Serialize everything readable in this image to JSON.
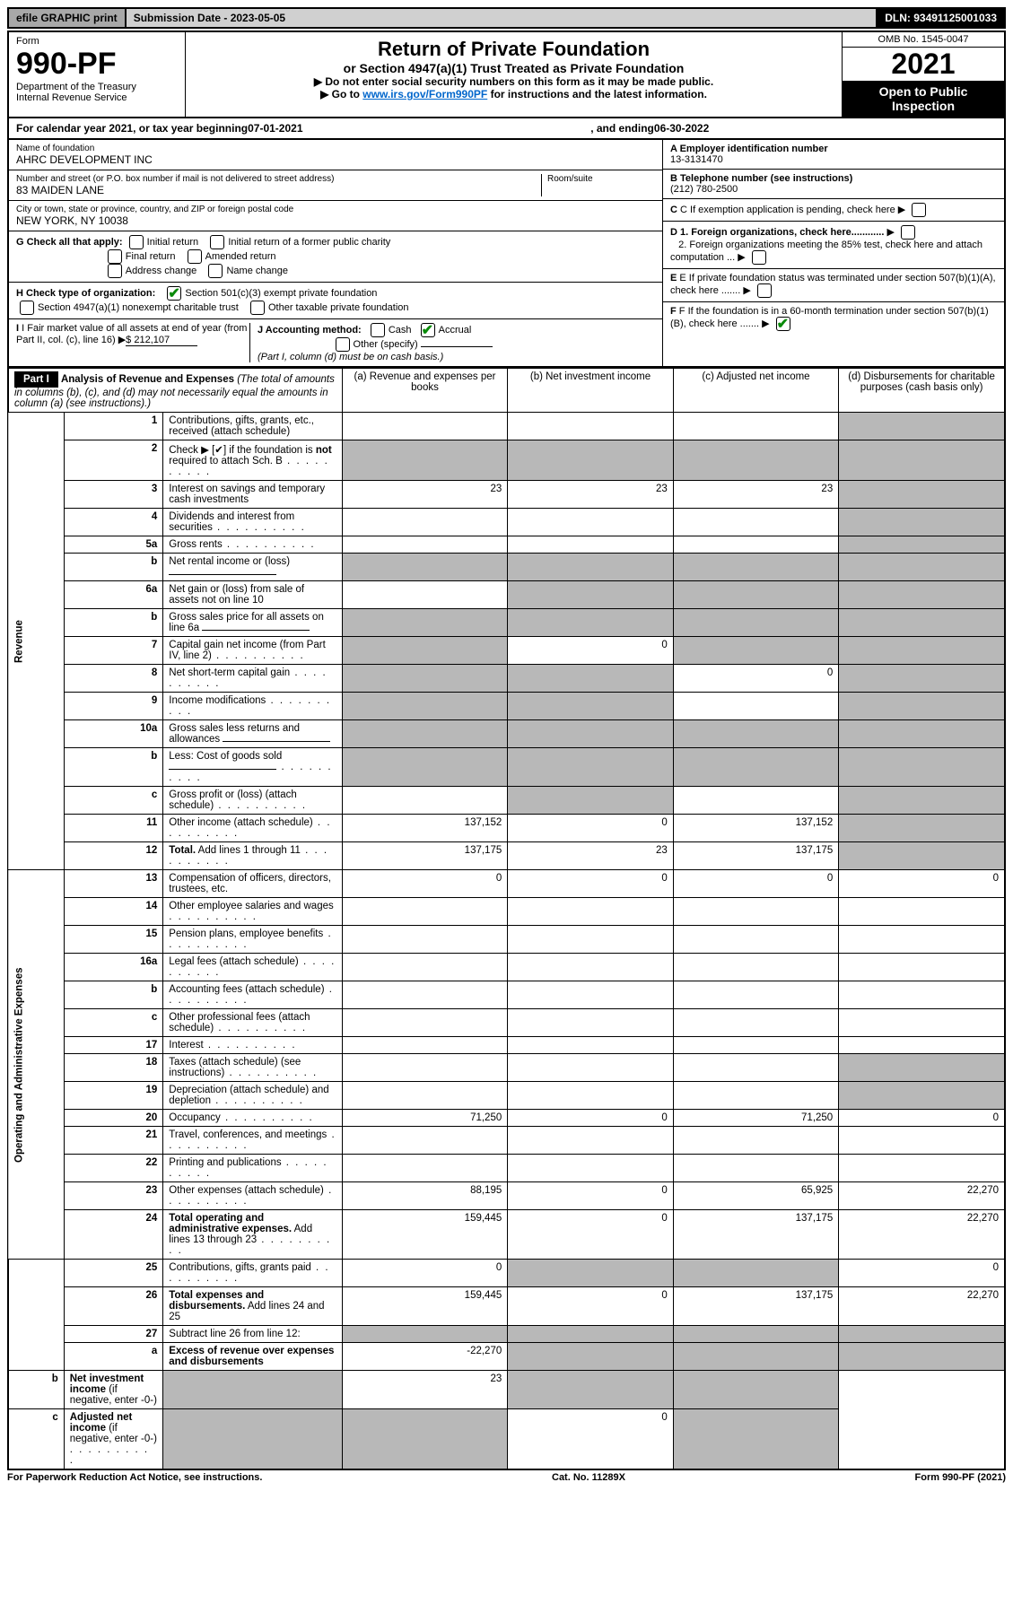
{
  "top": {
    "efile": "efile GRAPHIC print",
    "submission": "Submission Date - 2023-05-05",
    "dln": "DLN: 93491125001033"
  },
  "header": {
    "form_label": "Form",
    "form_num": "990-PF",
    "dept": "Department of the Treasury",
    "irs": "Internal Revenue Service",
    "title": "Return of Private Foundation",
    "subtitle": "or Section 4947(a)(1) Trust Treated as Private Foundation",
    "instr1": "▶ Do not enter social security numbers on this form as it may be made public.",
    "instr2_pre": "▶ Go to ",
    "instr2_link": "www.irs.gov/Form990PF",
    "instr2_post": " for instructions and the latest information.",
    "omb": "OMB No. 1545-0047",
    "year": "2021",
    "open": "Open to Public Inspection"
  },
  "cal": {
    "text1": "For calendar year 2021, or tax year beginning ",
    "begin": "07-01-2021",
    "text2": ", and ending ",
    "end": "06-30-2022"
  },
  "info": {
    "name_label": "Name of foundation",
    "name": "AHRC DEVELOPMENT INC",
    "addr_label": "Number and street (or P.O. box number if mail is not delivered to street address)",
    "addr": "83 MAIDEN LANE",
    "room_label": "Room/suite",
    "city_label": "City or town, state or province, country, and ZIP or foreign postal code",
    "city": "NEW YORK, NY  10038",
    "ein_label": "A Employer identification number",
    "ein": "13-3131470",
    "phone_label": "B Telephone number (see instructions)",
    "phone": "(212) 780-2500",
    "c_label": "C If exemption application is pending, check here",
    "g_label": "G Check all that apply:",
    "g_opts": [
      "Initial return",
      "Initial return of a former public charity",
      "Final return",
      "Amended return",
      "Address change",
      "Name change"
    ],
    "d1": "D 1. Foreign organizations, check here............",
    "d2": "2. Foreign organizations meeting the 85% test, check here and attach computation ...",
    "h_label": "H Check type of organization:",
    "h1": "Section 501(c)(3) exempt private foundation",
    "h2": "Section 4947(a)(1) nonexempt charitable trust",
    "h3": "Other taxable private foundation",
    "e_label": "E If private foundation status was terminated under section 507(b)(1)(A), check here .......",
    "i_label": "I Fair market value of all assets at end of year (from Part II, col. (c), line 16)",
    "i_val": "$  212,107",
    "j_label": "J Accounting method:",
    "j_cash": "Cash",
    "j_accrual": "Accrual",
    "j_other": "Other (specify)",
    "j_note": "(Part I, column (d) must be on cash basis.)",
    "f_label": "F If the foundation is in a 60-month termination under section 507(b)(1)(B), check here ......."
  },
  "part1": {
    "label": "Part I",
    "title": "Analysis of Revenue and Expenses",
    "note": "(The total of amounts in columns (b), (c), and (d) may not necessarily equal the amounts in column (a) (see instructions).)",
    "cols": {
      "a": "(a) Revenue and expenses per books",
      "b": "(b) Net investment income",
      "c": "(c) Adjusted net income",
      "d": "(d) Disbursements for charitable purposes (cash basis only)"
    }
  },
  "sections": {
    "revenue": "Revenue",
    "expenses": "Operating and Administrative Expenses"
  },
  "rows": [
    {
      "n": "1",
      "d": "Contributions, gifts, grants, etc., received (attach schedule)",
      "a": "",
      "b": "",
      "c": "",
      "dS": true
    },
    {
      "n": "2",
      "d": "Check ▶ [✔] if the foundation is <b>not</b> required to attach Sch. B",
      "dots": true,
      "aS": true,
      "bS": true,
      "cS": true,
      "dS": true
    },
    {
      "n": "3",
      "d": "Interest on savings and temporary cash investments",
      "a": "23",
      "b": "23",
      "c": "23",
      "dS": true
    },
    {
      "n": "4",
      "d": "Dividends and interest from securities",
      "dots": true,
      "a": "",
      "b": "",
      "c": "",
      "dS": true
    },
    {
      "n": "5a",
      "d": "Gross rents",
      "dots": true,
      "a": "",
      "b": "",
      "c": "",
      "dS": true
    },
    {
      "n": "b",
      "d": "Net rental income or (loss)",
      "underline": true,
      "aS": true,
      "bS": true,
      "cS": true,
      "dS": true
    },
    {
      "n": "6a",
      "d": "Net gain or (loss) from sale of assets not on line 10",
      "a": "",
      "bS": true,
      "cS": true,
      "dS": true
    },
    {
      "n": "b",
      "d": "Gross sales price for all assets on line 6a",
      "underline": true,
      "aS": true,
      "bS": true,
      "cS": true,
      "dS": true
    },
    {
      "n": "7",
      "d": "Capital gain net income (from Part IV, line 2)",
      "dots": true,
      "aS": true,
      "b": "0",
      "cS": true,
      "dS": true
    },
    {
      "n": "8",
      "d": "Net short-term capital gain",
      "dots": true,
      "aS": true,
      "bS": true,
      "c": "0",
      "dS": true
    },
    {
      "n": "9",
      "d": "Income modifications",
      "dots": true,
      "aS": true,
      "bS": true,
      "c": "",
      "dS": true
    },
    {
      "n": "10a",
      "d": "Gross sales less returns and allowances",
      "underline": true,
      "aS": true,
      "bS": true,
      "cS": true,
      "dS": true
    },
    {
      "n": "b",
      "d": "Less: Cost of goods sold",
      "dots": true,
      "underline": true,
      "aS": true,
      "bS": true,
      "cS": true,
      "dS": true
    },
    {
      "n": "c",
      "d": "Gross profit or (loss) (attach schedule)",
      "dots": true,
      "a": "",
      "bS": true,
      "c": "",
      "dS": true
    },
    {
      "n": "11",
      "d": "Other income (attach schedule)",
      "dots": true,
      "a": "137,152",
      "b": "0",
      "c": "137,152",
      "dS": true
    },
    {
      "n": "12",
      "d": "<b>Total.</b> Add lines 1 through 11",
      "dots": true,
      "a": "137,175",
      "b": "23",
      "c": "137,175",
      "dS": true
    },
    {
      "n": "13",
      "d": "Compensation of officers, directors, trustees, etc.",
      "a": "0",
      "b": "0",
      "c": "0",
      "dd": "0"
    },
    {
      "n": "14",
      "d": "Other employee salaries and wages",
      "dots": true,
      "a": "",
      "b": "",
      "c": "",
      "dd": ""
    },
    {
      "n": "15",
      "d": "Pension plans, employee benefits",
      "dots": true,
      "a": "",
      "b": "",
      "c": "",
      "dd": ""
    },
    {
      "n": "16a",
      "d": "Legal fees (attach schedule)",
      "dots": true,
      "a": "",
      "b": "",
      "c": "",
      "dd": ""
    },
    {
      "n": "b",
      "d": "Accounting fees (attach schedule)",
      "dots": true,
      "a": "",
      "b": "",
      "c": "",
      "dd": ""
    },
    {
      "n": "c",
      "d": "Other professional fees (attach schedule)",
      "dots": true,
      "a": "",
      "b": "",
      "c": "",
      "dd": ""
    },
    {
      "n": "17",
      "d": "Interest",
      "dots": true,
      "a": "",
      "b": "",
      "c": "",
      "dd": ""
    },
    {
      "n": "18",
      "d": "Taxes (attach schedule) (see instructions)",
      "dots": true,
      "a": "",
      "b": "",
      "c": "",
      "dS": true
    },
    {
      "n": "19",
      "d": "Depreciation (attach schedule) and depletion",
      "dots": true,
      "a": "",
      "b": "",
      "c": "",
      "dS": true
    },
    {
      "n": "20",
      "d": "Occupancy",
      "dots": true,
      "a": "71,250",
      "b": "0",
      "c": "71,250",
      "dd": "0"
    },
    {
      "n": "21",
      "d": "Travel, conferences, and meetings",
      "dots": true,
      "a": "",
      "b": "",
      "c": "",
      "dd": ""
    },
    {
      "n": "22",
      "d": "Printing and publications",
      "dots": true,
      "a": "",
      "b": "",
      "c": "",
      "dd": ""
    },
    {
      "n": "23",
      "d": "Other expenses (attach schedule)",
      "dots": true,
      "a": "88,195",
      "b": "0",
      "c": "65,925",
      "dd": "22,270"
    },
    {
      "n": "24",
      "d": "<b>Total operating and administrative expenses.</b> Add lines 13 through 23",
      "dots": true,
      "a": "159,445",
      "b": "0",
      "c": "137,175",
      "dd": "22,270"
    },
    {
      "n": "25",
      "d": "Contributions, gifts, grants paid",
      "dots": true,
      "a": "0",
      "bS": true,
      "cS": true,
      "dd": "0"
    },
    {
      "n": "26",
      "d": "<b>Total expenses and disbursements.</b> Add lines 24 and 25",
      "a": "159,445",
      "b": "0",
      "c": "137,175",
      "dd": "22,270"
    },
    {
      "n": "27",
      "d": "Subtract line 26 from line 12:",
      "aS": true,
      "bS": true,
      "cS": true,
      "dS": true
    },
    {
      "n": "a",
      "d": "<b>Excess of revenue over expenses and disbursements</b>",
      "a": "-22,270",
      "bS": true,
      "cS": true,
      "dS": true
    },
    {
      "n": "b",
      "d": "<b>Net investment income</b> (if negative, enter -0-)",
      "aS": true,
      "b": "23",
      "cS": true,
      "dS": true
    },
    {
      "n": "c",
      "d": "<b>Adjusted net income</b> (if negative, enter -0-)",
      "dots": true,
      "aS": true,
      "bS": true,
      "c": "0",
      "dS": true
    }
  ],
  "footer": {
    "left": "For Paperwork Reduction Act Notice, see instructions.",
    "mid": "Cat. No. 11289X",
    "right": "Form 990-PF (2021)"
  }
}
